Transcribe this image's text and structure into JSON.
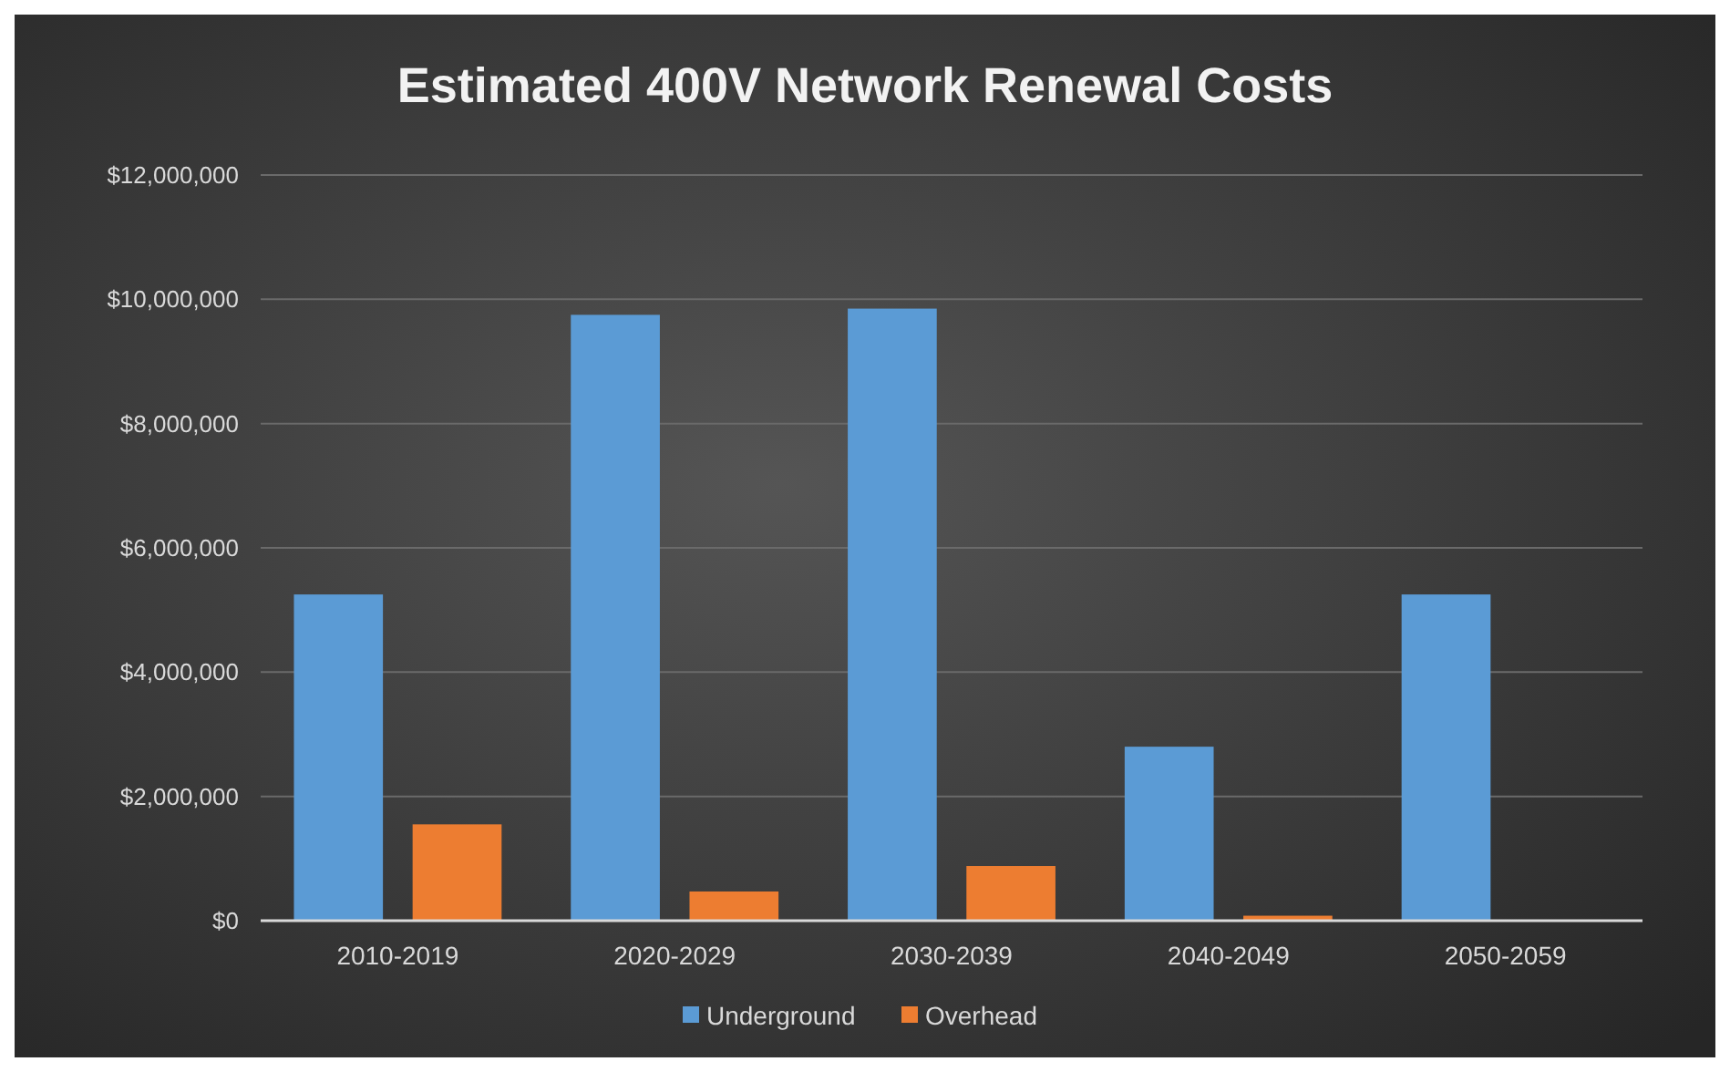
{
  "chart_data": {
    "type": "bar",
    "title": "Estimated 400V Network Renewal Costs",
    "categories": [
      "2010-2019",
      "2020-2029",
      "2030-2039",
      "2040-2049",
      "2050-2059"
    ],
    "series": [
      {
        "name": "Underground",
        "color": "#5b9bd5",
        "values": [
          5250000,
          9750000,
          9850000,
          2800000,
          5250000
        ]
      },
      {
        "name": "Overhead",
        "color": "#ed7d31",
        "values": [
          1550000,
          470000,
          880000,
          80000,
          0
        ]
      }
    ],
    "ylim": [
      0,
      12000000
    ],
    "yticks": [
      {
        "value": 0,
        "label": "$0"
      },
      {
        "value": 2000000,
        "label": "$2,000,000"
      },
      {
        "value": 4000000,
        "label": "$4,000,000"
      },
      {
        "value": 6000000,
        "label": "$6,000,000"
      },
      {
        "value": 8000000,
        "label": "$8,000,000"
      },
      {
        "value": 10000000,
        "label": "$10,000,000"
      },
      {
        "value": 12000000,
        "label": "$12,000,000"
      }
    ],
    "grid": "y",
    "legend": "bottom"
  }
}
